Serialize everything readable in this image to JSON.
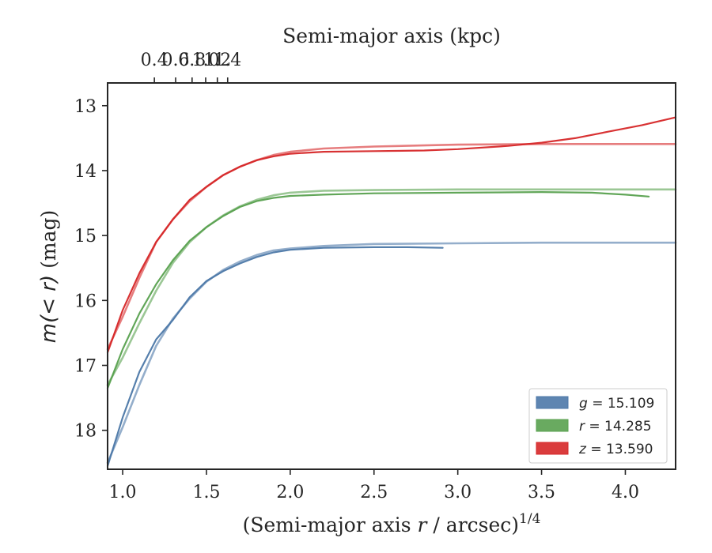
{
  "chart_data": {
    "type": "line",
    "xlabel_main": "(Semi-major axis ",
    "xlabel_var": "r",
    "xlabel_unit": " / arcsec)",
    "xlabel_exp": "1/4",
    "xlabel_top": "Semi-major axis (kpc)",
    "ylabel_main": "m",
    "ylabel_paren": "(< r)",
    "ylabel_unit": " (mag)",
    "xlim": [
      0.91,
      4.3
    ],
    "ylim": [
      18.6,
      12.65
    ],
    "y_inverted": true,
    "grid": false,
    "legend_position": "lower-right",
    "x_ticks": [
      1.0,
      1.5,
      2.0,
      2.5,
      3.0,
      3.5,
      4.0
    ],
    "x_tick_labels": [
      "1.0",
      "1.5",
      "2.0",
      "2.5",
      "3.0",
      "3.5",
      "4.0"
    ],
    "y_ticks": [
      13,
      14,
      15,
      16,
      17,
      18
    ],
    "y_tick_labels": [
      "13",
      "14",
      "15",
      "16",
      "17",
      "18"
    ],
    "top_ticks_kpc": [
      0.4,
      0.6,
      0.8,
      1.0,
      1.2,
      1.4
    ],
    "top_tick_labels": [
      "0.4",
      "0.6",
      "0.8",
      "1.0",
      "1.2",
      "1.4"
    ],
    "kpc_per_arcsec": 0.2,
    "series": [
      {
        "name": "g = 15.109",
        "legend_var": "g",
        "legend_value": "15.109",
        "color": "#4c78a8",
        "data": [
          [
            0.91,
            18.55
          ],
          [
            1.0,
            17.8
          ],
          [
            1.1,
            17.1
          ],
          [
            1.2,
            16.6
          ],
          [
            1.3,
            16.3
          ],
          [
            1.4,
            15.95
          ],
          [
            1.5,
            15.7
          ],
          [
            1.6,
            15.55
          ],
          [
            1.7,
            15.43
          ],
          [
            1.8,
            15.33
          ],
          [
            1.9,
            15.26
          ],
          [
            2.0,
            15.22
          ],
          [
            2.2,
            15.19
          ],
          [
            2.5,
            15.18
          ],
          [
            2.7,
            15.18
          ],
          [
            2.91,
            15.19
          ]
        ],
        "model": [
          [
            0.91,
            18.5
          ],
          [
            1.0,
            17.95
          ],
          [
            1.1,
            17.3
          ],
          [
            1.2,
            16.7
          ],
          [
            1.3,
            16.28
          ],
          [
            1.4,
            15.97
          ],
          [
            1.5,
            15.71
          ],
          [
            1.6,
            15.53
          ],
          [
            1.7,
            15.4
          ],
          [
            1.8,
            15.3
          ],
          [
            1.9,
            15.23
          ],
          [
            2.0,
            15.2
          ],
          [
            2.2,
            15.16
          ],
          [
            2.5,
            15.13
          ],
          [
            3.0,
            15.12
          ],
          [
            3.5,
            15.11
          ],
          [
            4.0,
            15.11
          ],
          [
            4.3,
            15.11
          ]
        ]
      },
      {
        "name": "r = 14.285",
        "legend_var": "r",
        "legend_value": "14.285",
        "color": "#59a14f",
        "data": [
          [
            0.91,
            17.35
          ],
          [
            1.0,
            16.75
          ],
          [
            1.1,
            16.2
          ],
          [
            1.2,
            15.75
          ],
          [
            1.3,
            15.38
          ],
          [
            1.4,
            15.08
          ],
          [
            1.5,
            14.87
          ],
          [
            1.6,
            14.7
          ],
          [
            1.7,
            14.56
          ],
          [
            1.8,
            14.47
          ],
          [
            1.9,
            14.42
          ],
          [
            2.0,
            14.39
          ],
          [
            2.2,
            14.37
          ],
          [
            2.5,
            14.35
          ],
          [
            3.0,
            14.34
          ],
          [
            3.5,
            14.33
          ],
          [
            3.8,
            14.34
          ],
          [
            4.0,
            14.37
          ],
          [
            4.14,
            14.4
          ]
        ],
        "model": [
          [
            0.91,
            17.3
          ],
          [
            1.0,
            16.88
          ],
          [
            1.1,
            16.35
          ],
          [
            1.2,
            15.85
          ],
          [
            1.3,
            15.42
          ],
          [
            1.4,
            15.1
          ],
          [
            1.5,
            14.87
          ],
          [
            1.6,
            14.69
          ],
          [
            1.7,
            14.55
          ],
          [
            1.8,
            14.45
          ],
          [
            1.9,
            14.38
          ],
          [
            2.0,
            14.34
          ],
          [
            2.2,
            14.31
          ],
          [
            2.5,
            14.3
          ],
          [
            3.0,
            14.29
          ],
          [
            3.5,
            14.29
          ],
          [
            4.0,
            14.29
          ],
          [
            4.3,
            14.29
          ]
        ]
      },
      {
        "name": "z = 13.590",
        "legend_var": "z",
        "legend_value": "13.590",
        "color": "#d62728",
        "data": [
          [
            0.91,
            16.8
          ],
          [
            1.0,
            16.15
          ],
          [
            1.1,
            15.58
          ],
          [
            1.2,
            15.1
          ],
          [
            1.3,
            14.75
          ],
          [
            1.4,
            14.45
          ],
          [
            1.5,
            14.25
          ],
          [
            1.6,
            14.07
          ],
          [
            1.7,
            13.94
          ],
          [
            1.8,
            13.84
          ],
          [
            1.9,
            13.78
          ],
          [
            2.0,
            13.74
          ],
          [
            2.2,
            13.71
          ],
          [
            2.5,
            13.7
          ],
          [
            2.8,
            13.69
          ],
          [
            3.0,
            13.67
          ],
          [
            3.3,
            13.62
          ],
          [
            3.5,
            13.57
          ],
          [
            3.7,
            13.5
          ],
          [
            3.9,
            13.4
          ],
          [
            4.1,
            13.3
          ],
          [
            4.3,
            13.18
          ]
        ],
        "model": [
          [
            0.91,
            16.75
          ],
          [
            1.0,
            16.25
          ],
          [
            1.1,
            15.65
          ],
          [
            1.2,
            15.1
          ],
          [
            1.3,
            14.75
          ],
          [
            1.4,
            14.47
          ],
          [
            1.5,
            14.25
          ],
          [
            1.6,
            14.07
          ],
          [
            1.7,
            13.94
          ],
          [
            1.8,
            13.84
          ],
          [
            1.9,
            13.76
          ],
          [
            2.0,
            13.71
          ],
          [
            2.2,
            13.66
          ],
          [
            2.5,
            13.63
          ],
          [
            3.0,
            13.6
          ],
          [
            3.5,
            13.59
          ],
          [
            4.0,
            13.59
          ],
          [
            4.3,
            13.59
          ]
        ]
      }
    ]
  }
}
